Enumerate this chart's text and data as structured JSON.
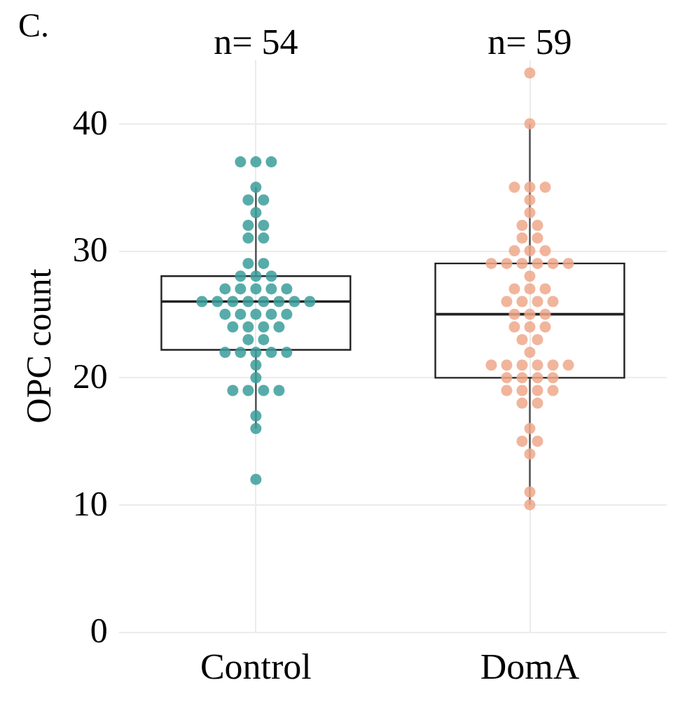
{
  "chart_data": {
    "type": "box",
    "title": "C.",
    "ylabel": "OPC count",
    "categories": [
      "Control",
      "DomA"
    ],
    "boxes": [
      {
        "low": 16,
        "q1": 22.2,
        "median": 26,
        "q3": 28,
        "high": 35
      },
      {
        "low": 10,
        "q1": 20,
        "median": 25,
        "q3": 29,
        "high": 40
      }
    ],
    "ylim": [
      0,
      45
    ],
    "yticks": [
      0,
      10,
      20,
      30,
      40
    ],
    "grid": true,
    "annotations": [
      "n= 54",
      "n= 59"
    ],
    "series": [
      {
        "type": "scatter",
        "color": "#3a9e9a",
        "x": [
          "Control",
          "Control",
          "Control",
          "Control",
          "Control",
          "Control",
          "Control",
          "Control",
          "Control",
          "Control",
          "Control",
          "Control",
          "Control",
          "Control",
          "Control",
          "Control",
          "Control",
          "Control",
          "Control",
          "Control",
          "Control",
          "Control",
          "Control",
          "Control",
          "Control",
          "Control",
          "Control",
          "Control",
          "Control",
          "Control",
          "Control",
          "Control",
          "Control",
          "Control",
          "Control",
          "Control",
          "Control",
          "Control",
          "Control",
          "Control",
          "Control",
          "Control",
          "Control",
          "Control",
          "Control",
          "Control",
          "Control",
          "Control",
          "Control",
          "Control",
          "Control",
          "Control",
          "Control",
          "Control"
        ],
        "values": [
          37,
          37,
          37,
          35,
          34,
          34,
          33,
          32,
          32,
          31,
          31,
          29,
          29,
          28,
          28,
          28,
          27,
          27,
          27,
          27,
          27,
          26,
          26,
          26,
          26,
          26,
          26,
          26,
          26,
          25,
          25,
          25,
          25,
          25,
          24,
          24,
          24,
          24,
          23,
          23,
          22,
          22,
          22,
          22,
          22,
          21,
          20,
          19,
          19,
          19,
          19,
          17,
          16,
          12
        ]
      },
      {
        "type": "scatter",
        "color": "#eea88b",
        "x": [
          "DomA",
          "DomA",
          "DomA",
          "DomA",
          "DomA",
          "DomA",
          "DomA",
          "DomA",
          "DomA",
          "DomA",
          "DomA",
          "DomA",
          "DomA",
          "DomA",
          "DomA",
          "DomA",
          "DomA",
          "DomA",
          "DomA",
          "DomA",
          "DomA",
          "DomA",
          "DomA",
          "DomA",
          "DomA",
          "DomA",
          "DomA",
          "DomA",
          "DomA",
          "DomA",
          "DomA",
          "DomA",
          "DomA",
          "DomA",
          "DomA",
          "DomA",
          "DomA",
          "DomA",
          "DomA",
          "DomA",
          "DomA",
          "DomA",
          "DomA",
          "DomA",
          "DomA",
          "DomA",
          "DomA",
          "DomA",
          "DomA",
          "DomA",
          "DomA",
          "DomA",
          "DomA",
          "DomA",
          "DomA",
          "DomA",
          "DomA",
          "DomA",
          "DomA"
        ],
        "values": [
          44,
          40,
          35,
          35,
          35,
          34,
          33,
          32,
          32,
          31,
          31,
          30,
          30,
          30,
          29,
          29,
          29,
          29,
          29,
          29,
          28,
          27,
          27,
          27,
          26,
          26,
          26,
          26,
          25,
          25,
          25,
          24,
          24,
          24,
          23,
          23,
          22,
          21,
          21,
          21,
          21,
          21,
          21,
          20,
          20,
          20,
          20,
          19,
          19,
          19,
          19,
          18,
          18,
          16,
          15,
          15,
          14,
          11,
          10
        ]
      }
    ]
  }
}
